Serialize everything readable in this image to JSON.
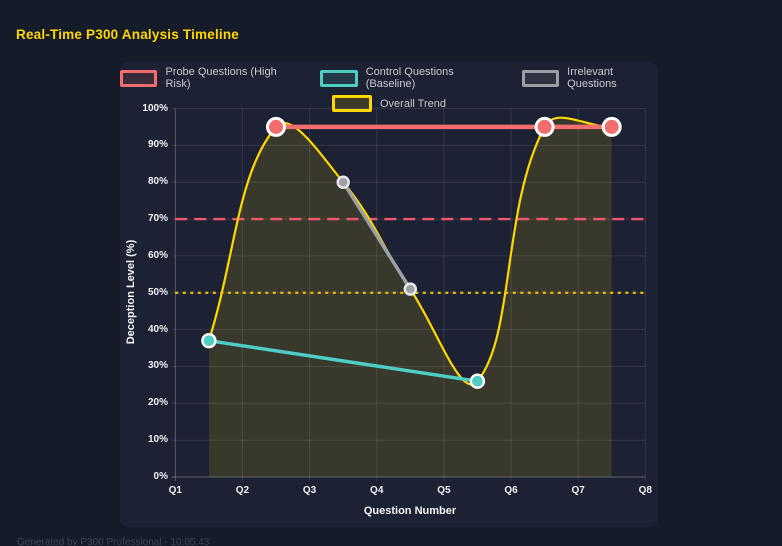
{
  "page": {
    "title": "Real-Time P300 Analysis Timeline",
    "footer": "Generated by P300 Professional - 10:05:43"
  },
  "colors": {
    "page_background": "#161b2a",
    "panel_background": "#1c2133",
    "title_text": "#ffd700",
    "legend_text": "#c6cad2",
    "tick_text": "#eff1f5",
    "axis_title_text": "#f5f6f8",
    "footer_text": "#3d4456",
    "grid_line": "rgba(255,255,255,0.10)",
    "axis_line": "rgba(255,255,255,0.28)"
  },
  "chart_data": {
    "type": "line",
    "title": "Real-Time P300 Analysis Timeline",
    "xlabel": "Question Number",
    "ylabel": "Deception Level (%)",
    "x_range": [
      1,
      8
    ],
    "y_range": [
      0,
      100
    ],
    "x_tick_labels": [
      "Q1",
      "Q2",
      "Q3",
      "Q4",
      "Q5",
      "Q6",
      "Q7",
      "Q8"
    ],
    "y_tick_labels": [
      "0%",
      "10%",
      "20%",
      "30%",
      "40%",
      "50%",
      "60%",
      "70%",
      "80%",
      "90%",
      "100%"
    ],
    "grid": true,
    "legend_position": "top",
    "series": [
      {
        "name": "Probe Questions (High Risk)",
        "color": "#f26d6d",
        "line_width": 4.5,
        "point_radius": 8.5,
        "point_border_color": "#ffffff",
        "points": [
          {
            "x": 2.5,
            "y": 95
          },
          {
            "x": 6.5,
            "y": 95
          },
          {
            "x": 7.5,
            "y": 95
          }
        ]
      },
      {
        "name": "Control Questions (Baseline)",
        "color": "#4ecdc4",
        "line_width": 3.5,
        "point_radius": 6.5,
        "point_border_color": "#ffffff",
        "points": [
          {
            "x": 1.5,
            "y": 37
          },
          {
            "x": 5.5,
            "y": 26
          }
        ]
      },
      {
        "name": "Irrelevant Questions",
        "color": "#9aa0a6",
        "line_width": 3.5,
        "point_radius": 5.5,
        "point_border_color": "#e9ebee",
        "points": [
          {
            "x": 3.5,
            "y": 80
          },
          {
            "x": 4.5,
            "y": 51
          }
        ]
      },
      {
        "name": "Overall Trend",
        "color": "#ffd700",
        "line_width": 2.2,
        "point_radius": 0,
        "smooth": true,
        "fill_color": "rgba(255,215,0,0.13)",
        "points": [
          {
            "x": 1.5,
            "y": 37
          },
          {
            "x": 2.5,
            "y": 95
          },
          {
            "x": 3.5,
            "y": 80
          },
          {
            "x": 4.5,
            "y": 51
          },
          {
            "x": 5.5,
            "y": 26
          },
          {
            "x": 6.5,
            "y": 95
          },
          {
            "x": 7.5,
            "y": 95
          }
        ]
      }
    ],
    "thresholds": [
      {
        "y": 70,
        "color": "#f2566d",
        "style": "dashed"
      },
      {
        "y": 50,
        "color": "#e0b50a",
        "style": "dotted"
      }
    ]
  }
}
